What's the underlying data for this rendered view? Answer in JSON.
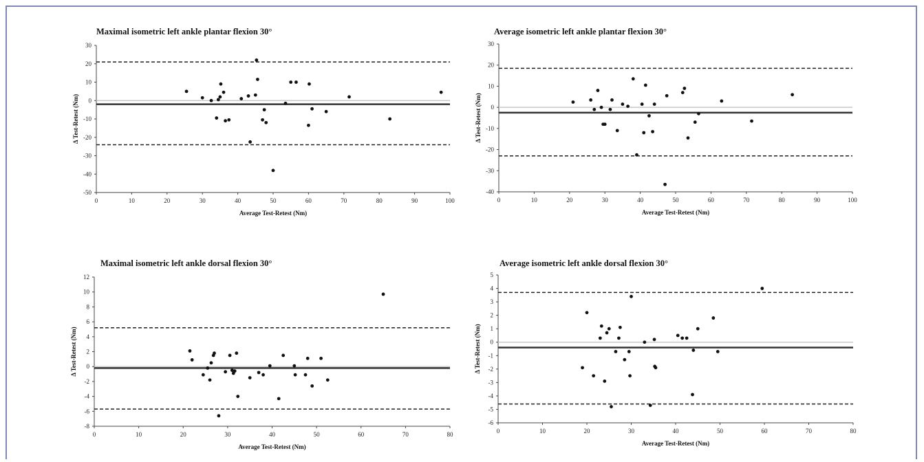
{
  "border_color": "#7f86b8",
  "chart_data": [
    {
      "type": "scatter",
      "title": "Maximal isometric left ankle plantar flexion 30°",
      "xlabel": "Average Test-Retest (Nm)",
      "ylabel": "Δ Test-Retest (Nm)",
      "xlim": [
        0,
        100
      ],
      "ylim": [
        -50,
        30
      ],
      "xticks": [
        0,
        10,
        20,
        30,
        40,
        50,
        60,
        70,
        80,
        90,
        100
      ],
      "yticks": [
        -50,
        -40,
        -30,
        -20,
        -10,
        0,
        10,
        20,
        30
      ],
      "mean_bias": -2,
      "upper_loa": 21,
      "lower_loa": -24,
      "zero_line": true,
      "points": [
        [
          25.5,
          5
        ],
        [
          30,
          1.5
        ],
        [
          32.5,
          0
        ],
        [
          34,
          -9.5
        ],
        [
          34.5,
          0.5
        ],
        [
          35,
          2
        ],
        [
          35.2,
          9
        ],
        [
          36,
          4.5
        ],
        [
          36.5,
          -11
        ],
        [
          37.5,
          -10.5
        ],
        [
          41,
          1
        ],
        [
          43,
          2.5
        ],
        [
          43.5,
          -22.5
        ],
        [
          45,
          3
        ],
        [
          45.3,
          22
        ],
        [
          45.6,
          11.5
        ],
        [
          47,
          -10.5
        ],
        [
          47.5,
          -5
        ],
        [
          48,
          -12
        ],
        [
          50,
          -38
        ],
        [
          53.5,
          -1.5
        ],
        [
          55,
          10
        ],
        [
          56.5,
          10
        ],
        [
          60,
          -13.5
        ],
        [
          60.2,
          9
        ],
        [
          61,
          -4.5
        ],
        [
          65,
          -6
        ],
        [
          71.5,
          2
        ],
        [
          83,
          -10
        ],
        [
          97.5,
          4.5
        ]
      ]
    },
    {
      "type": "scatter",
      "title": "Average isometric left ankle plantar flexion 30°",
      "xlabel": "Average Test-Retest (Nm)",
      "ylabel": "Δ Test-Retest (Nm)",
      "xlim": [
        0,
        100
      ],
      "ylim": [
        -40,
        30
      ],
      "xticks": [
        0,
        10,
        20,
        30,
        40,
        50,
        60,
        70,
        80,
        90,
        100
      ],
      "yticks": [
        -40,
        -30,
        -20,
        -10,
        0,
        10,
        20,
        30
      ],
      "mean_bias": -2.5,
      "upper_loa": 18.5,
      "lower_loa": -23,
      "zero_line": true,
      "points": [
        [
          21,
          2.5
        ],
        [
          26,
          3.5
        ],
        [
          27,
          -1
        ],
        [
          28,
          8
        ],
        [
          29,
          0
        ],
        [
          29.5,
          -8
        ],
        [
          30,
          -8
        ],
        [
          31.5,
          -1
        ],
        [
          32,
          3.5
        ],
        [
          33.5,
          -11
        ],
        [
          35,
          1.5
        ],
        [
          36.5,
          0.5
        ],
        [
          38,
          13.5
        ],
        [
          39,
          -22.5
        ],
        [
          40.5,
          1.5
        ],
        [
          41,
          -12
        ],
        [
          41.5,
          10.5
        ],
        [
          42.5,
          -4
        ],
        [
          43.5,
          -11.5
        ],
        [
          44,
          1.5
        ],
        [
          47,
          -36.5
        ],
        [
          47.5,
          5.5
        ],
        [
          52,
          7
        ],
        [
          52.5,
          9
        ],
        [
          53.5,
          -14.5
        ],
        [
          55.5,
          -7
        ],
        [
          56.5,
          -3
        ],
        [
          63,
          3
        ],
        [
          71.5,
          -6.5
        ],
        [
          83,
          6
        ]
      ]
    },
    {
      "type": "scatter",
      "title": "Maximal isometric left ankle dorsal flexion 30°",
      "xlabel": "Average Test-Retest (Nm)",
      "ylabel": "Δ Test-Retest (Nm)",
      "xlim": [
        0,
        80
      ],
      "ylim": [
        -8,
        12
      ],
      "xticks": [
        0,
        10,
        20,
        30,
        40,
        50,
        60,
        70,
        80
      ],
      "yticks": [
        -8,
        -6,
        -4,
        -2,
        0,
        2,
        4,
        6,
        8,
        10,
        12
      ],
      "mean_bias": -0.2,
      "upper_loa": 5.2,
      "lower_loa": -5.7,
      "zero_line": true,
      "points": [
        [
          21.5,
          2.1
        ],
        [
          22,
          0.9
        ],
        [
          24.5,
          -1.1
        ],
        [
          25.5,
          -0.2
        ],
        [
          26,
          -1.8
        ],
        [
          26.3,
          0.5
        ],
        [
          26.8,
          1.5
        ],
        [
          27,
          1.8
        ],
        [
          28,
          -6.6
        ],
        [
          29.5,
          -0.7
        ],
        [
          30.5,
          1.5
        ],
        [
          31,
          -0.5
        ],
        [
          31.3,
          -0.9
        ],
        [
          31.6,
          -0.6
        ],
        [
          32,
          1.8
        ],
        [
          32.3,
          -4
        ],
        [
          35,
          -1.5
        ],
        [
          37,
          -0.8
        ],
        [
          38,
          -1.1
        ],
        [
          39.5,
          0.1
        ],
        [
          41.5,
          -4.3
        ],
        [
          42.5,
          1.5
        ],
        [
          45,
          0.1
        ],
        [
          45.2,
          -1.1
        ],
        [
          47.5,
          -1.1
        ],
        [
          48,
          1.1
        ],
        [
          49,
          -2.6
        ],
        [
          51,
          1.1
        ],
        [
          52.5,
          -1.8
        ],
        [
          65,
          9.7
        ]
      ]
    },
    {
      "type": "scatter",
      "title": "Average isometric left ankle dorsal flexion 30°",
      "xlabel": "Average Test-Retest (Nm)",
      "ylabel": "Δ Test-Retest (Nm)",
      "xlim": [
        0,
        80
      ],
      "ylim": [
        -6,
        5
      ],
      "xticks": [
        0,
        10,
        20,
        30,
        40,
        50,
        60,
        70,
        80
      ],
      "yticks": [
        -6,
        -5,
        -4,
        -3,
        -2,
        -1,
        0,
        1,
        2,
        3,
        4,
        5
      ],
      "mean_bias": -0.4,
      "upper_loa": 3.7,
      "lower_loa": -4.6,
      "zero_line": true,
      "points": [
        [
          19,
          -1.9
        ],
        [
          20,
          2.2
        ],
        [
          21.5,
          -2.5
        ],
        [
          23,
          0.3
        ],
        [
          23.3,
          1.2
        ],
        [
          24,
          -2.9
        ],
        [
          24.5,
          0.7
        ],
        [
          25,
          1
        ],
        [
          25.5,
          -4.8
        ],
        [
          26.5,
          -0.7
        ],
        [
          27.2,
          0.3
        ],
        [
          27.5,
          1.1
        ],
        [
          28.5,
          -1.3
        ],
        [
          29.5,
          -0.7
        ],
        [
          29.7,
          -2.5
        ],
        [
          30,
          3.4
        ],
        [
          33,
          0
        ],
        [
          34.3,
          -4.7
        ],
        [
          35.2,
          0.2
        ],
        [
          35.3,
          -1.8
        ],
        [
          35.5,
          -1.9
        ],
        [
          40.5,
          0.5
        ],
        [
          41.5,
          0.3
        ],
        [
          42.5,
          0.3
        ],
        [
          43.8,
          -3.9
        ],
        [
          44,
          -0.6
        ],
        [
          45,
          1
        ],
        [
          48.5,
          1.8
        ],
        [
          49.5,
          -0.7
        ],
        [
          59.5,
          4
        ]
      ]
    }
  ]
}
